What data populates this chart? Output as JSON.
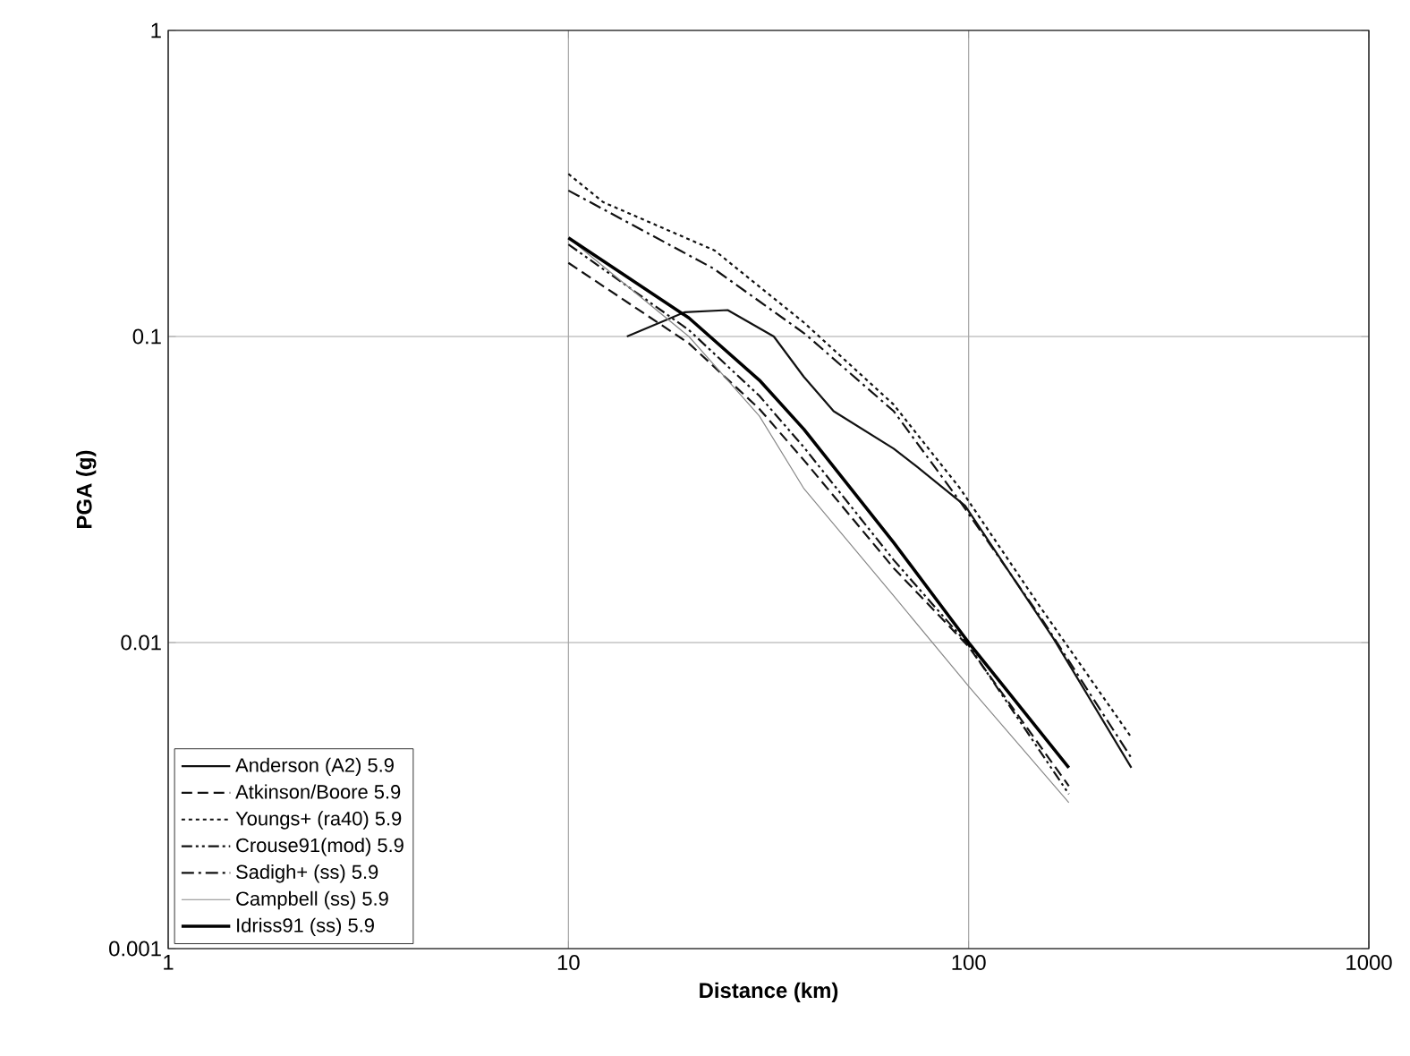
{
  "chart_data": {
    "type": "line",
    "xlabel": "Distance (km)",
    "ylabel": "PGA (g)",
    "log": "xy",
    "grid": true,
    "legend": "bottom left",
    "xlim": [
      1,
      1000
    ],
    "ylim": [
      0.001,
      1
    ],
    "xticks": [
      1,
      10,
      100,
      1000
    ],
    "yticks": [
      0.001,
      0.01,
      0.1,
      1
    ],
    "series": [
      {
        "name": "Anderson  (A2)  5.9",
        "color": "#111111",
        "line_style": "solid",
        "x": [
          14,
          19.5,
          25,
          32.6,
          38.7,
          46,
          65,
          74,
          98,
          163,
          255
        ],
        "values": [
          0.1,
          0.12,
          0.122,
          0.1,
          0.074,
          0.057,
          0.043,
          0.0377,
          0.028,
          0.0103,
          0.0039
        ]
      },
      {
        "name": "Atkinson/Boore  5.9",
        "color": "#111111",
        "line_style": "dashed",
        "x": [
          10,
          20,
          30,
          38.8,
          65,
          100,
          178
        ],
        "values": [
          0.174,
          0.095,
          0.058,
          0.0394,
          0.0175,
          0.0097,
          0.0034
        ]
      },
      {
        "name": "Youngs+  (ra40)  5.9",
        "color": "#111111",
        "line_style": "dotted",
        "x": [
          10,
          12.2,
          23.2,
          38.8,
          64.9,
          95,
          152,
          255
        ],
        "values": [
          0.34,
          0.275,
          0.191,
          0.111,
          0.06,
          0.032,
          0.0129,
          0.0049
        ]
      },
      {
        "name": "Crouse91(mod)  5.9",
        "color": "#111111",
        "line_style": "dashdotdotted",
        "x": [
          10,
          20,
          30,
          38.8,
          65,
          100,
          178
        ],
        "values": [
          0.2,
          0.105,
          0.064,
          0.0434,
          0.0186,
          0.0098,
          0.0032
        ]
      },
      {
        "name": "Sadigh+  (ss)  5.9",
        "color": "#111111",
        "line_style": "dashdotted",
        "x": [
          10,
          23,
          39,
          65,
          95,
          152,
          255
        ],
        "values": [
          0.3,
          0.167,
          0.102,
          0.057,
          0.029,
          0.012,
          0.0042
        ]
      },
      {
        "name": "Campbell  (ss)  5.9",
        "color": "#888888",
        "line_style": "solid",
        "x": [
          10,
          20,
          30,
          38.8,
          65,
          100,
          178
        ],
        "values": [
          0.21,
          0.1,
          0.055,
          0.0318,
          0.0142,
          0.0072,
          0.003
        ]
      },
      {
        "name": "Idriss91  (ss)  5.9",
        "color": "#000000",
        "line_style": "solid",
        "x": [
          10,
          20,
          30,
          38.8,
          65,
          100,
          178
        ],
        "values": [
          0.21,
          0.115,
          0.072,
          0.0497,
          0.0212,
          0.01,
          0.0039
        ]
      }
    ]
  }
}
